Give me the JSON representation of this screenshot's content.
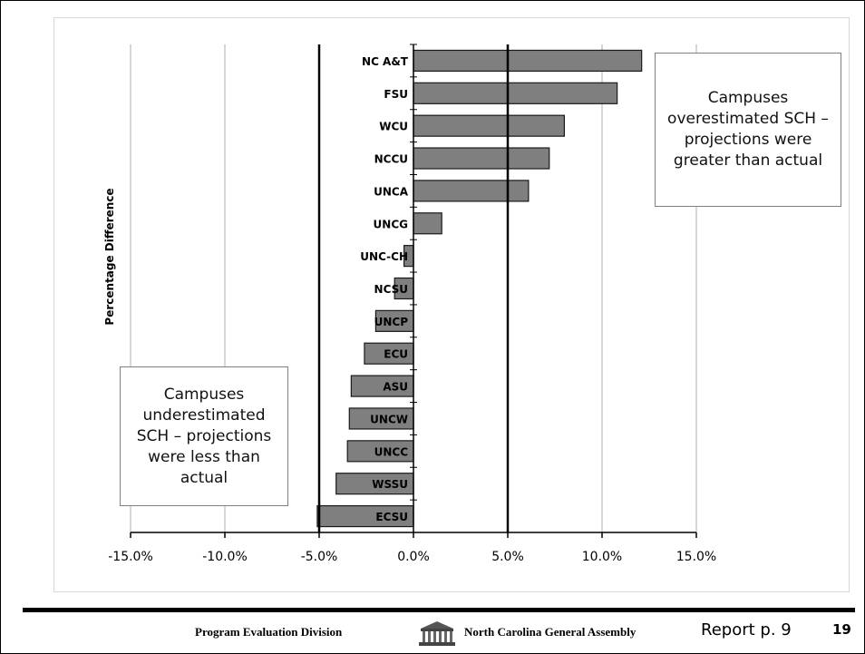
{
  "chart_data": {
    "type": "bar",
    "orientation": "horizontal",
    "ylabel": "Percentage Difference",
    "xlabel": "",
    "xlim": [
      -15,
      15
    ],
    "x_ticks": [
      "-15.0%",
      "-10.0%",
      "-5.0%",
      "0.0%",
      "5.0%",
      "10.0%",
      "15.0%"
    ],
    "grid": true,
    "reference_lines": [
      -5,
      5
    ],
    "categories": [
      "NC A&T",
      "FSU",
      "WCU",
      "NCCU",
      "UNCA",
      "UNCG",
      "UNC-CH",
      "NCSU",
      "UNCP",
      "ECU",
      "ASU",
      "UNCW",
      "UNCC",
      "WSSU",
      "ECSU"
    ],
    "values": [
      12.1,
      10.8,
      8.0,
      7.2,
      6.1,
      1.5,
      -0.5,
      -1.0,
      -2.0,
      -2.6,
      -3.3,
      -3.4,
      -3.5,
      -4.1,
      -5.1
    ],
    "bar_color": "#7f7f7f"
  },
  "callouts": {
    "over": "Campuses overestimated SCH – projections were greater than actual",
    "under": "Campuses underestimated SCH – projections were less than actual"
  },
  "footer": {
    "division": "Program Evaluation Division",
    "assembly": "North Carolina General Assembly",
    "report": "Report p. 9",
    "page": "19"
  }
}
